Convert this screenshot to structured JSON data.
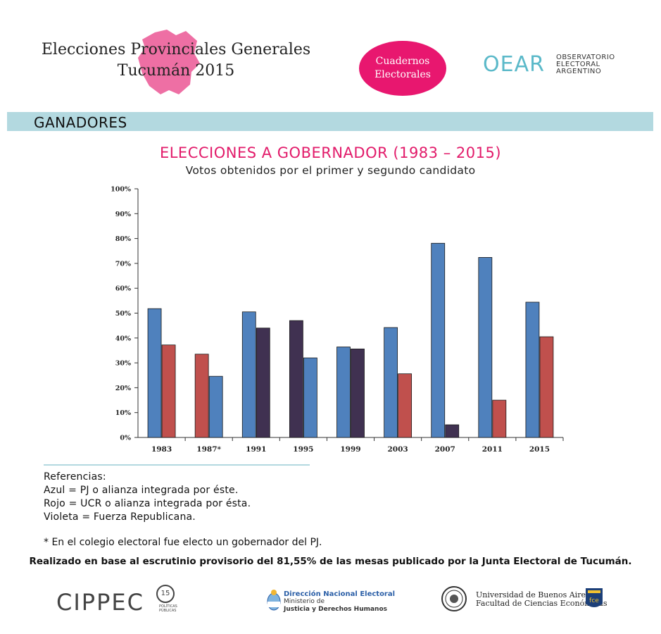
{
  "header": {
    "title_line1": "Elecciones Provinciales Generales",
    "title_line2": "Tucumán 2015",
    "map_color": "#ee6fa4",
    "badge_line1": "Cuadernos",
    "badge_line2": "Electorales",
    "badge_color": "#e8176f",
    "oear_mark": "OEAR",
    "oear_line1": "OBSERVATORIO",
    "oear_line2": "ELECTORAL",
    "oear_line3": "ARGENTINO"
  },
  "section": {
    "label": "GANADORES",
    "band_color": "#b3d9e0"
  },
  "chart_data": {
    "type": "bar",
    "title": "ELECCIONES A GOBERNADOR (1983 – 2015)",
    "subtitle": "Votos obtenidos por el primer y segundo candidato",
    "categories": [
      "1983",
      "1987*",
      "1991",
      "1995",
      "1999",
      "2003",
      "2007",
      "2011",
      "2015"
    ],
    "ylim": [
      0,
      100
    ],
    "yticks": [
      "0%",
      "10%",
      "20%",
      "30%",
      "40%",
      "50%",
      "60%",
      "70%",
      "80%",
      "90%",
      "100%"
    ],
    "series": [
      {
        "name": "Primer candidato",
        "values": [
          51.8,
          33.5,
          50.5,
          47.0,
          36.4,
          44.2,
          78.1,
          72.4,
          54.4
        ],
        "colors": [
          "#4f81bd",
          "#c0504d",
          "#4f81bd",
          "#403151",
          "#4f81bd",
          "#4f81bd",
          "#4f81bd",
          "#4f81bd",
          "#4f81bd"
        ]
      },
      {
        "name": "Segundo candidato",
        "values": [
          37.2,
          24.6,
          44.0,
          32.0,
          35.6,
          25.6,
          5.1,
          15.0,
          40.5
        ],
        "colors": [
          "#c0504d",
          "#4f81bd",
          "#403151",
          "#4f81bd",
          "#403151",
          "#c0504d",
          "#403151",
          "#c0504d",
          "#c0504d"
        ]
      }
    ]
  },
  "references": {
    "heading": "Referencias:",
    "azul": "Azul = PJ o alianza integrada por éste.",
    "rojo": "Rojo = UCR o alianza integrada por ésta.",
    "violeta": "Violeta = Fuerza Republicana.",
    "footnote": "* En el colegio electoral fue electo un gobernador del PJ."
  },
  "source": "Realizado en base al escrutinio provisorio del 81,55% de las mesas publicado por la Junta Electoral de Tucumán.",
  "footer": {
    "cippec": "CIPPEC",
    "cippec_badge": "15",
    "cippec_sub1": "POLÍTICAS",
    "cippec_sub2": "PÚBLICAS",
    "dne_title": "Dirección Nacional Electoral",
    "dne_line1": "Ministerio de",
    "dne_line2": "Justicia y Derechos Humanos",
    "uba_line1": "Universidad de Buenos Aires",
    "uba_line2": "Facultad de Ciencias Económicas",
    "fce": "fce"
  }
}
